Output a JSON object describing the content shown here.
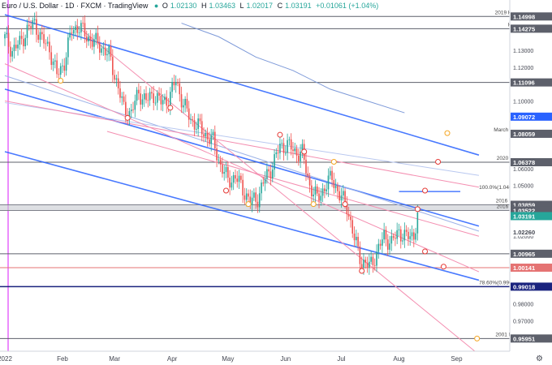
{
  "header": {
    "symbol": "Euro / U.S. Dollar · 1D · FXCM · TradingView",
    "open_label": "O",
    "open": "1.02130",
    "high_label": "H",
    "high": "1.03463",
    "low_label": "L",
    "low": "1.02017",
    "close_label": "C",
    "close": "1.03191",
    "change": "+0.01061 (+1.04%)"
  },
  "colors": {
    "up": "#26a69a",
    "down": "#ef5350",
    "trend_blue": "#2962ff",
    "pink_line": "#f48fb1",
    "level_gray": "#5d606b",
    "magenta": "#e040fb",
    "navy": "#1a237e",
    "red_hline": "#e57373",
    "ma_blue": "#7e9ad9"
  },
  "chart_data": {
    "type": "candlestick",
    "title": "Euro / U.S. Dollar · 1D · FXCM",
    "x_labels": [
      "2022",
      "Feb",
      "Mar",
      "Apr",
      "May",
      "Jun",
      "Jul",
      "Aug",
      "Sep"
    ],
    "x_label_days": [
      0,
      31,
      59,
      90,
      120,
      151,
      181,
      212,
      243
    ],
    "ylim": [
      0.952,
      1.153
    ],
    "y_ticks": [
      "1.13000",
      "1.12000",
      "1.10000",
      "1.08000",
      "1.06000",
      "1.05000",
      "1.04000",
      "1.02000",
      "1.01000",
      "0.99000",
      "0.98000",
      "0.97000",
      "0.96000"
    ],
    "price_badges": [
      {
        "label": "1.14998",
        "value": 1.14998
      },
      {
        "label": "1.14275",
        "value": 1.14275
      },
      {
        "label": "1.11096",
        "value": 1.11096
      },
      {
        "label": "1.09072",
        "value": 1.09072
      },
      {
        "label": "1.08059",
        "value": 1.08059
      },
      {
        "label": "1.06378",
        "value": 1.06378
      },
      {
        "label": "1.03859",
        "value": 1.03859
      },
      {
        "label": "1.03522",
        "value": 1.03522
      },
      {
        "label": "1.03191",
        "value": 1.03191
      },
      {
        "label": "1.02260",
        "value": 1.0226
      },
      {
        "label": "1.00965",
        "value": 1.00965
      },
      {
        "label": "1.00141",
        "value": 1.00141
      },
      {
        "label": "0.99018",
        "value": 0.99018
      },
      {
        "label": "0.95951",
        "value": 0.95951
      }
    ],
    "annotations": [
      {
        "text": "2019 HDC",
        "value": 1.14998
      },
      {
        "text": "HDC",
        "value": 1.14275
      },
      {
        "text": "March Low",
        "value": 1.08059
      },
      {
        "text": "2020 Low",
        "value": 1.06378
      },
      {
        "text": "100.0%(1.04645)",
        "value": 1.04645
      },
      {
        "text": "2016 LDC",
        "value": 1.03859
      },
      {
        "text": "2016 Low",
        "value": 1.03522
      },
      {
        "text": "LDC",
        "value": 1.00965
      },
      {
        "text": "78.60%(0.99018)",
        "value": 0.99018
      },
      {
        "text": "2001 High",
        "value": 0.95951
      }
    ],
    "horizontal_levels": [
      1.14998,
      1.14275,
      1.11096,
      1.06378,
      1.03859,
      1.03522,
      1.00965,
      1.00141,
      0.99018,
      0.95951
    ],
    "fib_segment": {
      "value": 1.04645,
      "from_day": 212,
      "to_day": 245
    },
    "trend_lines_blue": [
      {
        "d1": 0,
        "p1": 1.151,
        "d2": 255,
        "p2": 1.068
      },
      {
        "d1": 0,
        "p1": 1.107,
        "d2": 255,
        "p2": 1.026
      },
      {
        "d1": 0,
        "p1": 1.07,
        "d2": 255,
        "p2": 0.994
      }
    ],
    "trend_lines_pink": [
      {
        "d1": 38,
        "p1": 1.145,
        "d2": 255,
        "p2": 0.95
      },
      {
        "d1": 0,
        "p1": 1.122,
        "d2": 255,
        "p2": 0.999
      },
      {
        "d1": 0,
        "p1": 1.1,
        "d2": 255,
        "p2": 1.049
      },
      {
        "d1": 55,
        "p1": 1.082,
        "d2": 255,
        "p2": 1.02
      }
    ],
    "moving_average": {
      "days": [
        95,
        115,
        135,
        155,
        175,
        195,
        215
      ],
      "values": [
        1.146,
        1.138,
        1.126,
        1.118,
        1.107,
        1.1,
        1.093
      ]
    },
    "markers": [
      {
        "day": 30,
        "value": 1.112,
        "color": "orange"
      },
      {
        "day": 66,
        "value": 1.09,
        "color": "red"
      },
      {
        "day": 89,
        "value": 1.096,
        "color": "red"
      },
      {
        "day": 119,
        "value": 1.047,
        "color": "red"
      },
      {
        "day": 131,
        "value": 1.039,
        "color": "orange"
      },
      {
        "day": 148,
        "value": 1.08,
        "color": "red"
      },
      {
        "day": 161,
        "value": 1.07,
        "color": "red"
      },
      {
        "day": 166,
        "value": 1.039,
        "color": "orange"
      },
      {
        "day": 177,
        "value": 1.064,
        "color": "orange"
      },
      {
        "day": 183,
        "value": 1.039,
        "color": "red"
      },
      {
        "day": 192,
        "value": 0.9995,
        "color": "red"
      },
      {
        "day": 222,
        "value": 1.036,
        "color": "red"
      },
      {
        "day": 226,
        "value": 1.047,
        "color": "red"
      },
      {
        "day": 226,
        "value": 1.011,
        "color": "red"
      },
      {
        "day": 236,
        "value": 1.002,
        "color": "red"
      },
      {
        "day": 233,
        "value": 1.064,
        "color": "red"
      },
      {
        "day": 238,
        "value": 1.081,
        "color": "orange"
      },
      {
        "day": 254,
        "value": 0.9595,
        "color": "orange"
      }
    ],
    "closes": [
      {
        "day": 0,
        "value": 1.137
      },
      {
        "day": 4,
        "value": 1.13
      },
      {
        "day": 8,
        "value": 1.134
      },
      {
        "day": 12,
        "value": 1.142
      },
      {
        "day": 16,
        "value": 1.146
      },
      {
        "day": 20,
        "value": 1.136
      },
      {
        "day": 24,
        "value": 1.131
      },
      {
        "day": 28,
        "value": 1.115
      },
      {
        "day": 32,
        "value": 1.123
      },
      {
        "day": 36,
        "value": 1.142
      },
      {
        "day": 40,
        "value": 1.144
      },
      {
        "day": 44,
        "value": 1.138
      },
      {
        "day": 48,
        "value": 1.135
      },
      {
        "day": 52,
        "value": 1.132
      },
      {
        "day": 56,
        "value": 1.127
      },
      {
        "day": 60,
        "value": 1.112
      },
      {
        "day": 64,
        "value": 1.095
      },
      {
        "day": 68,
        "value": 1.093
      },
      {
        "day": 72,
        "value": 1.105
      },
      {
        "day": 76,
        "value": 1.1
      },
      {
        "day": 80,
        "value": 1.104
      },
      {
        "day": 84,
        "value": 1.099
      },
      {
        "day": 88,
        "value": 1.101
      },
      {
        "day": 92,
        "value": 1.112
      },
      {
        "day": 96,
        "value": 1.098
      },
      {
        "day": 100,
        "value": 1.089
      },
      {
        "day": 104,
        "value": 1.085
      },
      {
        "day": 108,
        "value": 1.08
      },
      {
        "day": 112,
        "value": 1.076
      },
      {
        "day": 116,
        "value": 1.062
      },
      {
        "day": 120,
        "value": 1.053
      },
      {
        "day": 124,
        "value": 1.055
      },
      {
        "day": 128,
        "value": 1.048
      },
      {
        "day": 132,
        "value": 1.04
      },
      {
        "day": 136,
        "value": 1.043
      },
      {
        "day": 140,
        "value": 1.054
      },
      {
        "day": 144,
        "value": 1.062
      },
      {
        "day": 148,
        "value": 1.073
      },
      {
        "day": 152,
        "value": 1.074
      },
      {
        "day": 156,
        "value": 1.07
      },
      {
        "day": 160,
        "value": 1.069
      },
      {
        "day": 164,
        "value": 1.05
      },
      {
        "day": 168,
        "value": 1.042
      },
      {
        "day": 172,
        "value": 1.049
      },
      {
        "day": 176,
        "value": 1.055
      },
      {
        "day": 180,
        "value": 1.044
      },
      {
        "day": 184,
        "value": 1.038
      },
      {
        "day": 188,
        "value": 1.018
      },
      {
        "day": 192,
        "value": 1.005
      },
      {
        "day": 196,
        "value": 1.002
      },
      {
        "day": 200,
        "value": 1.01
      },
      {
        "day": 204,
        "value": 1.02
      },
      {
        "day": 208,
        "value": 1.016
      },
      {
        "day": 212,
        "value": 1.023
      },
      {
        "day": 216,
        "value": 1.019
      },
      {
        "day": 220,
        "value": 1.021
      },
      {
        "day": 222,
        "value": 1.0319
      }
    ]
  }
}
